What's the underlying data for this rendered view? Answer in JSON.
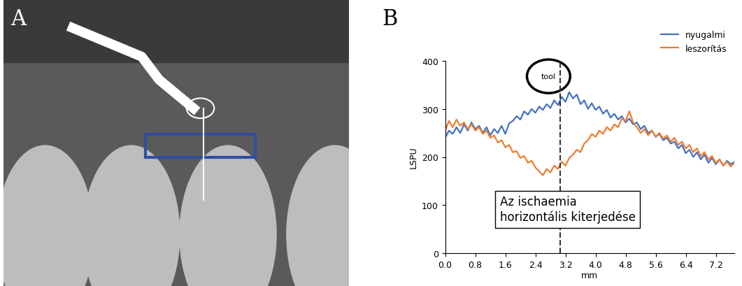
{
  "image_panel": {
    "label": "A"
  },
  "chart_data": {
    "type": "line",
    "panel_label": "B",
    "xlabel": "mm",
    "ylabel": "LSPU",
    "x": [
      0.0,
      0.1,
      0.2,
      0.3,
      0.4,
      0.5,
      0.6,
      0.7,
      0.8,
      0.9,
      1.0,
      1.1,
      1.2,
      1.3,
      1.4,
      1.5,
      1.6,
      1.7,
      1.8,
      1.9,
      2.0,
      2.1,
      2.2,
      2.3,
      2.4,
      2.5,
      2.6,
      2.7,
      2.8,
      2.9,
      3.0,
      3.1,
      3.2,
      3.3,
      3.4,
      3.5,
      3.6,
      3.7,
      3.8,
      3.9,
      4.0,
      4.1,
      4.2,
      4.3,
      4.4,
      4.5,
      4.6,
      4.7,
      4.8,
      4.9,
      5.0,
      5.1,
      5.2,
      5.3,
      5.4,
      5.5,
      5.6,
      5.7,
      5.8,
      5.9,
      6.0,
      6.1,
      6.2,
      6.3,
      6.4,
      6.5,
      6.6,
      6.7,
      6.8,
      6.9,
      7.0,
      7.1,
      7.2,
      7.3,
      7.4,
      7.5,
      7.6,
      7.7
    ],
    "series": [
      {
        "name": "nyugalmi",
        "color": "#4472c4",
        "values": [
          240,
          255,
          248,
          262,
          250,
          268,
          255,
          272,
          258,
          265,
          250,
          262,
          245,
          258,
          250,
          265,
          248,
          270,
          275,
          285,
          278,
          295,
          288,
          300,
          292,
          305,
          298,
          310,
          302,
          318,
          308,
          325,
          315,
          335,
          322,
          330,
          310,
          318,
          300,
          312,
          298,
          305,
          290,
          298,
          282,
          290,
          278,
          285,
          272,
          280,
          268,
          272,
          258,
          265,
          250,
          255,
          242,
          248,
          235,
          240,
          228,
          232,
          218,
          225,
          208,
          215,
          200,
          210,
          195,
          205,
          188,
          198,
          185,
          195,
          182,
          192,
          185,
          190
        ]
      },
      {
        "name": "leszorítás",
        "color": "#ed7d31",
        "values": [
          255,
          275,
          262,
          278,
          265,
          272,
          258,
          268,
          255,
          262,
          248,
          255,
          240,
          245,
          230,
          235,
          220,
          225,
          210,
          212,
          198,
          202,
          188,
          192,
          178,
          170,
          162,
          175,
          168,
          182,
          175,
          190,
          182,
          198,
          205,
          215,
          210,
          228,
          235,
          248,
          242,
          255,
          248,
          262,
          255,
          268,
          262,
          280,
          275,
          295,
          272,
          262,
          250,
          258,
          245,
          255,
          242,
          250,
          238,
          245,
          232,
          240,
          225,
          232,
          218,
          225,
          210,
          218,
          202,
          210,
          195,
          202,
          188,
          195,
          182,
          190,
          180,
          188
        ]
      }
    ],
    "xlim": [
      0,
      7.7
    ],
    "ylim": [
      0,
      400
    ],
    "xticks": [
      {
        "value": 0.0,
        "label": "0.0"
      },
      0.8,
      1.6,
      2.4,
      3.2,
      {
        "value": 4.0,
        "label": "4.0"
      },
      4.8,
      5.6,
      6.4,
      7.2
    ],
    "yticks": [
      0,
      100,
      200,
      300,
      400
    ],
    "legend": "upper right",
    "grid": false,
    "annotations": [
      {
        "text": "tool",
        "x": 3.05
      },
      {
        "text": "Az ischaemia\nhorizontális kiterjedése"
      }
    ]
  }
}
